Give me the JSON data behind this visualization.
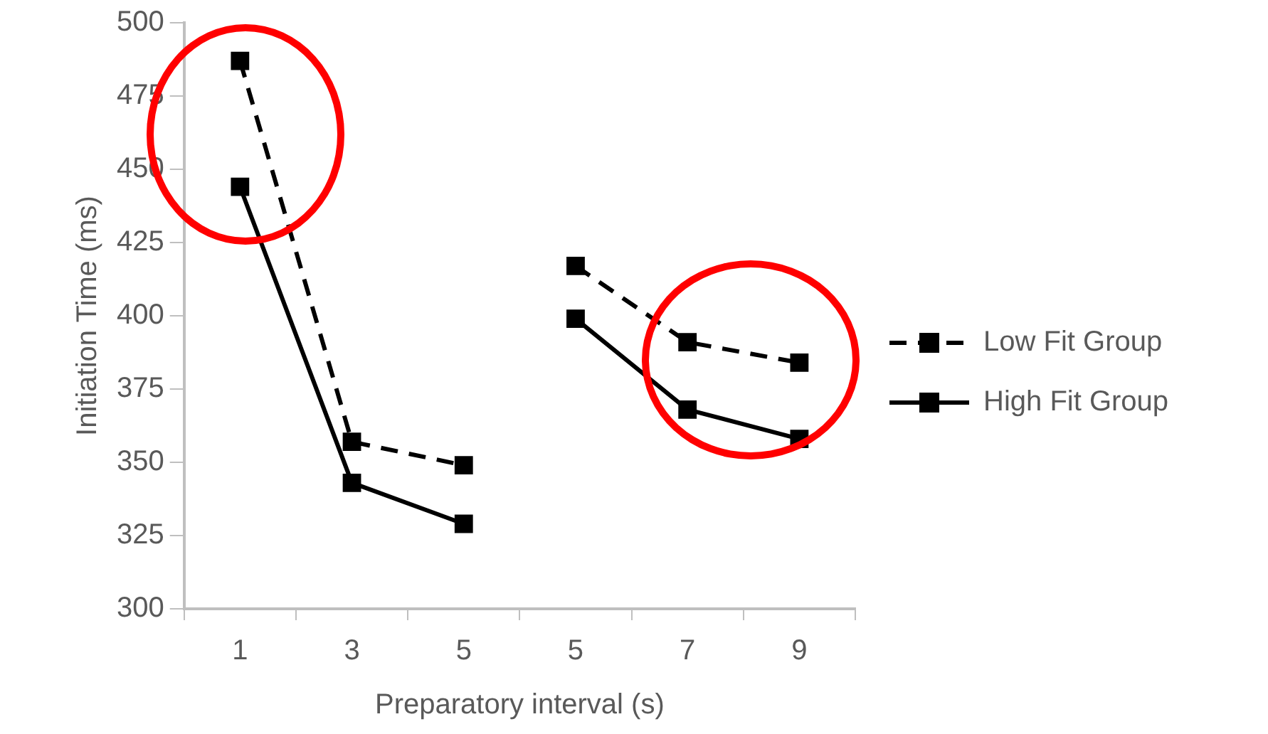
{
  "chart_data": {
    "type": "line",
    "xlabel": "Preparatory interval (s)",
    "ylabel": "Initiation Time (ms)",
    "categories": [
      "1",
      "3",
      "5",
      "5",
      "7",
      "9"
    ],
    "series": [
      {
        "name": "Low Fit Group",
        "color": "#000000",
        "line_style": "dashed",
        "values": [
          487,
          357,
          349,
          null,
          null,
          null
        ]
      },
      {
        "name": "High Fit Group",
        "color": "#000000",
        "line_style": "solid",
        "values": [
          444,
          343,
          329,
          null,
          null,
          null
        ]
      },
      {
        "color": "#000000",
        "line_style": "dashed",
        "values": [
          null,
          null,
          null,
          417,
          391,
          384
        ]
      },
      {
        "color": "#000000",
        "line_style": "solid",
        "values": [
          null,
          null,
          null,
          399,
          368,
          358
        ]
      }
    ],
    "ylim": [
      300,
      500
    ],
    "yticks": [
      300,
      325,
      350,
      375,
      400,
      425,
      450,
      475,
      500
    ],
    "grid": false,
    "legend": "right",
    "marker": "square"
  }
}
